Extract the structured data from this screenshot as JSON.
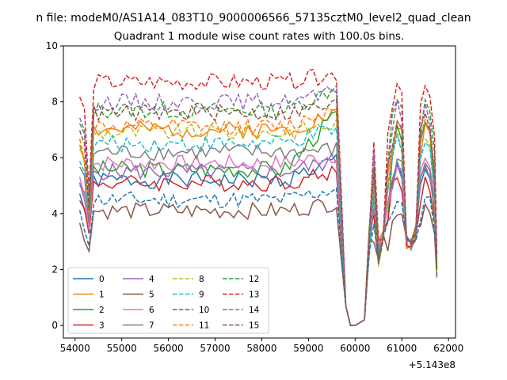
{
  "chart_data": {
    "type": "line",
    "suptitle": "n file: modeM0/AS1A14_083T10_9000006566_57135cztM0_level2_quad_clean",
    "title": "Quadrant 1 module wise count rates with 100.0s bins.",
    "xlabel": "",
    "ylabel": "",
    "offset_text": "+5.143e8",
    "xlim": [
      53750,
      62150
    ],
    "ylim": [
      -0.45,
      10.0
    ],
    "xticks": [
      54000,
      55000,
      56000,
      57000,
      58000,
      59000,
      60000,
      61000,
      62000
    ],
    "yticks": [
      0,
      2,
      4,
      6,
      8,
      10
    ],
    "grid": false,
    "legend": {
      "location": "lower-left",
      "columns": 4
    },
    "x": [
      54100,
      54200,
      54300,
      54400,
      54500,
      54600,
      54700,
      54800,
      54900,
      55000,
      55100,
      55200,
      55300,
      55400,
      55500,
      55600,
      55700,
      55800,
      55900,
      56000,
      56100,
      56200,
      56300,
      56400,
      56500,
      56600,
      56700,
      56800,
      56900,
      57000,
      57100,
      57200,
      57300,
      57400,
      57500,
      57600,
      57700,
      57800,
      57900,
      58000,
      58100,
      58200,
      58300,
      58400,
      58500,
      58600,
      58700,
      58800,
      58900,
      59000,
      59100,
      59200,
      59300,
      59400,
      59500,
      59600,
      59700,
      59800,
      59900,
      60000,
      60100,
      60200,
      60300,
      60400,
      60500,
      60600,
      60700,
      60800,
      60900,
      61000,
      61100,
      61200,
      61300,
      61400,
      61500,
      61600,
      61700,
      61750
    ],
    "series": [
      {
        "name": "0",
        "color": "#1f77b4",
        "dash": "solid",
        "base": 5.2,
        "active": 5.9,
        "seed": 1
      },
      {
        "name": "1",
        "color": "#ff7f0e",
        "dash": "solid",
        "base": 7.0,
        "active": 7.6,
        "seed": 2
      },
      {
        "name": "2",
        "color": "#2ca02c",
        "dash": "solid",
        "base": 5.6,
        "active": 7.6,
        "seed": 3
      },
      {
        "name": "3",
        "color": "#d62728",
        "dash": "solid",
        "base": 5.1,
        "active": 5.5,
        "seed": 4
      },
      {
        "name": "4",
        "color": "#9467bd",
        "dash": "solid",
        "base": 5.5,
        "active": 5.9,
        "seed": 5
      },
      {
        "name": "5",
        "color": "#8c564b",
        "dash": "solid",
        "base": 4.1,
        "active": 4.4,
        "seed": 6
      },
      {
        "name": "6",
        "color": "#e377c2",
        "dash": "solid",
        "base": 5.8,
        "active": 6.1,
        "seed": 7
      },
      {
        "name": "7",
        "color": "#7f7f7f",
        "dash": "solid",
        "base": 6.2,
        "active": 6.3,
        "seed": 8
      },
      {
        "name": "8",
        "color": "#bcbd22",
        "dash": "dashed",
        "base": 6.9,
        "active": 7.2,
        "seed": 9
      },
      {
        "name": "9",
        "color": "#17becf",
        "dash": "dashed",
        "base": 6.5,
        "active": 7.0,
        "seed": 10
      },
      {
        "name": "10",
        "color": "#1f77b4",
        "dash": "dashed",
        "base": 4.5,
        "active": 4.9,
        "seed": 11
      },
      {
        "name": "11",
        "color": "#ff7f0e",
        "dash": "dashed",
        "base": 7.1,
        "active": 7.8,
        "seed": 12
      },
      {
        "name": "12",
        "color": "#2ca02c",
        "dash": "dashed",
        "base": 7.7,
        "active": 8.5,
        "seed": 13
      },
      {
        "name": "13",
        "color": "#d62728",
        "dash": "dashed",
        "base": 8.7,
        "active": 9.0,
        "seed": 14
      },
      {
        "name": "14",
        "color": "#9467bd",
        "dash": "dashed",
        "base": 8.0,
        "active": 8.3,
        "seed": 15
      },
      {
        "name": "15",
        "color": "#8c564b",
        "dash": "dashed",
        "base": 7.6,
        "active": 7.9,
        "seed": 16
      }
    ]
  }
}
